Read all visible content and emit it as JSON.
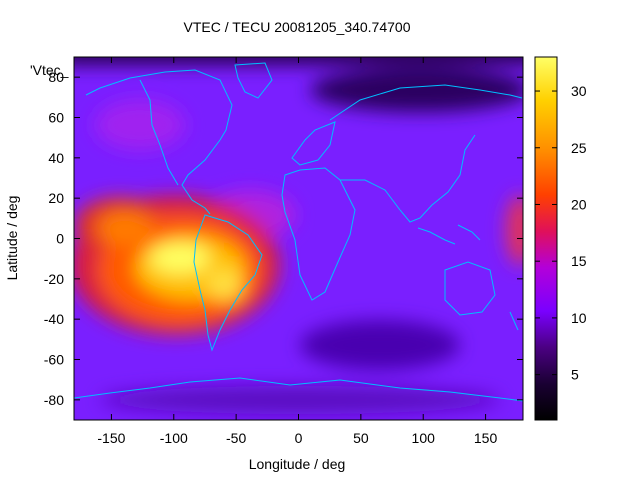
{
  "chart_data": {
    "type": "heatmap",
    "title": "VTEC / TECU 20081205_340.74700",
    "xlabel": "Longitude / deg",
    "ylabel": "Latitude / deg",
    "xlim": [
      -180,
      180
    ],
    "ylim": [
      -90,
      90
    ],
    "x_ticks": [
      -150,
      -100,
      -50,
      0,
      50,
      100,
      150
    ],
    "y_ticks": [
      -80,
      -60,
      -40,
      -20,
      0,
      20,
      40,
      60,
      80
    ],
    "colorbar": {
      "range": [
        1,
        33
      ],
      "ticks": [
        5,
        10,
        15,
        20,
        25,
        30
      ],
      "palette": [
        "#000000",
        "#1a0033",
        "#4b0082",
        "#7a00ff",
        "#b300d9",
        "#e0105a",
        "#ff4000",
        "#ff8c00",
        "#ffd000",
        "#ffff66"
      ]
    },
    "series_label": "'Vtec_",
    "overlay": "coastlines",
    "coastline_color": "#00bfff",
    "description_values": {
      "background_tec": 9,
      "peak_tec": 32,
      "peak_region_center_lon": -100,
      "peak_region_center_lat": -12,
      "polar_min_tec": 3
    }
  }
}
